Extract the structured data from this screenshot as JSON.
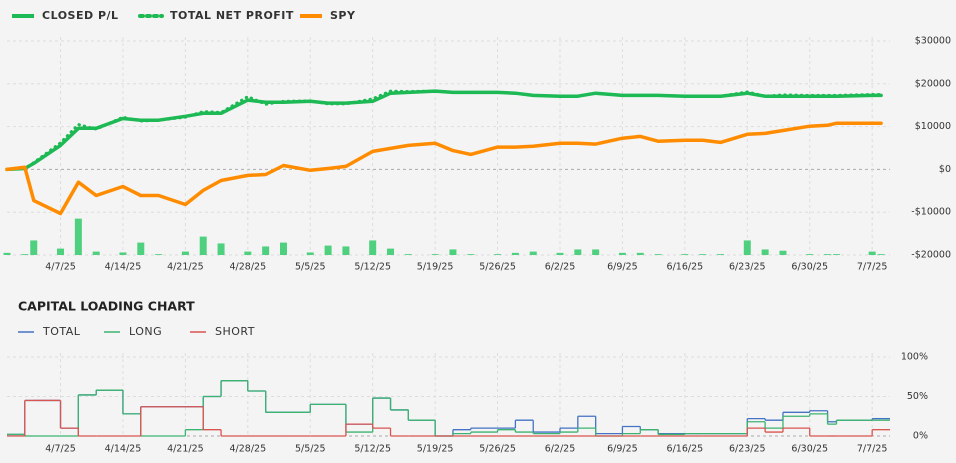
{
  "chart_data": [
    {
      "type": "line",
      "x": [
        "4/1/25",
        "4/3/25",
        "4/4/25",
        "4/7/25",
        "4/9/25",
        "4/11/25",
        "4/14/25",
        "4/16/25",
        "4/18/25",
        "4/21/25",
        "4/23/25",
        "4/25/25",
        "4/28/25",
        "4/30/25",
        "5/2/25",
        "5/5/25",
        "5/7/25",
        "5/9/25",
        "5/12/25",
        "5/14/25",
        "5/16/25",
        "5/19/25",
        "5/21/25",
        "5/23/25",
        "5/26/25",
        "5/28/25",
        "5/30/25",
        "6/2/25",
        "6/4/25",
        "6/6/25",
        "6/9/25",
        "6/11/25",
        "6/13/25",
        "6/16/25",
        "6/18/25",
        "6/20/25",
        "6/23/25",
        "6/25/25",
        "6/27/25",
        "6/30/25",
        "7/2/25",
        "7/3/25",
        "7/7/25",
        "7/8/25"
      ],
      "xlim": [
        "4/1/25",
        "7/9/25"
      ],
      "xticks": [
        "4/7/25",
        "4/14/25",
        "4/21/25",
        "4/28/25",
        "5/5/25",
        "5/12/25",
        "5/19/25",
        "5/26/25",
        "6/2/25",
        "6/9/25",
        "6/16/25",
        "6/23/25",
        "6/30/25",
        "7/7/25"
      ],
      "ylim": [
        -20000,
        30000
      ],
      "yticks": [
        {
          "value": 30000,
          "label": "$30000"
        },
        {
          "value": 20000,
          "label": "$20000"
        },
        {
          "value": 10000,
          "label": "$10000"
        },
        {
          "value": 0,
          "label": "$0"
        },
        {
          "value": -10000,
          "label": "-$10000"
        },
        {
          "value": -20000,
          "label": "-$20000"
        }
      ],
      "grid": true,
      "legend": "top-left",
      "series": [
        {
          "type": "bar",
          "color": "#4fd07f",
          "values": [
            -19500,
            -19800,
            -16600,
            -18500,
            -11500,
            -19200,
            -19400,
            -17100,
            -19800,
            -19200,
            -15700,
            -17300,
            -19200,
            -18000,
            -17100,
            -19400,
            -17800,
            -18000,
            -16600,
            -18500,
            -19800,
            -19800,
            -18700,
            -19800,
            -19800,
            -19500,
            -19200,
            -19500,
            -18700,
            -18700,
            -19500,
            -19500,
            -19800,
            -19800,
            -19800,
            -19800,
            -16600,
            -18700,
            -19000,
            -19800,
            -19800,
            -19800,
            -19200,
            -19800
          ]
        },
        {
          "name": "TOTAL NET PROFIT",
          "style": "dotted",
          "color": "#1db954",
          "values": [
            0,
            200,
            1600,
            6200,
            10500,
            9400,
            12200,
            11300,
            11500,
            12200,
            13500,
            13300,
            17000,
            15200,
            15900,
            16000,
            15300,
            15300,
            16500,
            18300,
            18200,
            18300,
            18000,
            18000,
            18000,
            17800,
            17300,
            17100,
            17100,
            17800,
            17300,
            17300,
            17300,
            17100,
            17100,
            17100,
            18100,
            17100,
            17400,
            17300,
            17300,
            17300,
            17500,
            17500
          ]
        },
        {
          "name": "CLOSED P/L",
          "style": "solid",
          "color": "#1db954",
          "values": [
            0,
            200,
            1400,
            5600,
            9600,
            9600,
            11900,
            11500,
            11500,
            12400,
            13100,
            13100,
            16200,
            15700,
            15700,
            15900,
            15500,
            15500,
            15900,
            17800,
            18000,
            18300,
            18000,
            18000,
            18000,
            17800,
            17300,
            17100,
            17100,
            17800,
            17300,
            17300,
            17300,
            17100,
            17100,
            17100,
            17800,
            17100,
            17100,
            17100,
            17100,
            17100,
            17300,
            17300
          ]
        },
        {
          "name": "SPY",
          "style": "solid",
          "color": "#ff8c00",
          "values": [
            0,
            500,
            -7300,
            -10300,
            -3000,
            -6100,
            -4000,
            -6100,
            -6100,
            -8200,
            -4900,
            -2600,
            -1400,
            -1200,
            900,
            -200,
            200,
            700,
            4200,
            4900,
            5600,
            6100,
            4400,
            3500,
            5200,
            5200,
            5400,
            6100,
            6100,
            5900,
            7300,
            7700,
            6600,
            6800,
            6800,
            6300,
            8200,
            8400,
            9100,
            10100,
            10300,
            10800,
            10800,
            10800
          ]
        }
      ],
      "legend_order": [
        2,
        1,
        3
      ]
    },
    {
      "type": "step",
      "title": "CAPITAL LOADING CHART",
      "x": [
        "4/1/25",
        "4/3/25",
        "4/4/25",
        "4/7/25",
        "4/9/25",
        "4/11/25",
        "4/14/25",
        "4/16/25",
        "4/18/25",
        "4/21/25",
        "4/23/25",
        "4/25/25",
        "4/28/25",
        "4/30/25",
        "5/2/25",
        "5/5/25",
        "5/7/25",
        "5/9/25",
        "5/12/25",
        "5/14/25",
        "5/16/25",
        "5/19/25",
        "5/21/25",
        "5/23/25",
        "5/26/25",
        "5/28/25",
        "5/30/25",
        "6/2/25",
        "6/4/25",
        "6/6/25",
        "6/9/25",
        "6/11/25",
        "6/13/25",
        "6/16/25",
        "6/18/25",
        "6/20/25",
        "6/23/25",
        "6/25/25",
        "6/27/25",
        "6/30/25",
        "7/2/25",
        "7/3/25",
        "7/7/25",
        "7/8/25"
      ],
      "xlim": [
        "4/1/25",
        "7/9/25"
      ],
      "xticks": [
        "4/7/25",
        "4/14/25",
        "4/21/25",
        "4/28/25",
        "5/5/25",
        "5/12/25",
        "5/19/25",
        "5/26/25",
        "6/2/25",
        "6/9/25",
        "6/16/25",
        "6/23/25",
        "6/30/25",
        "7/7/25"
      ],
      "ylim": [
        0,
        100
      ],
      "yticks": [
        {
          "value": 100,
          "label": "100%"
        },
        {
          "value": 50,
          "label": "50%"
        },
        {
          "value": 0,
          "label": "0%"
        }
      ],
      "grid": true,
      "legend": "top-left",
      "series": [
        {
          "name": "TOTAL",
          "color": "#4472c4",
          "values": [
            2,
            45,
            45,
            10,
            52,
            58,
            28,
            37,
            37,
            37,
            50,
            70,
            57,
            30,
            30,
            40,
            40,
            15,
            48,
            33,
            20,
            0,
            8,
            10,
            10,
            20,
            5,
            10,
            25,
            3,
            12,
            8,
            3,
            3,
            3,
            3,
            22,
            20,
            30,
            32,
            18,
            20,
            22,
            22
          ]
        },
        {
          "name": "LONG",
          "color": "#3cb371",
          "values": [
            2,
            0,
            0,
            0,
            52,
            58,
            28,
            0,
            0,
            8,
            50,
            70,
            57,
            30,
            30,
            40,
            40,
            5,
            48,
            33,
            20,
            0,
            3,
            5,
            8,
            5,
            3,
            5,
            10,
            0,
            3,
            8,
            2,
            3,
            3,
            3,
            18,
            10,
            25,
            28,
            15,
            20,
            20,
            20
          ]
        },
        {
          "name": "SHORT",
          "color": "#d9534f",
          "values": [
            0,
            45,
            45,
            10,
            0,
            0,
            0,
            37,
            37,
            37,
            8,
            0,
            0,
            0,
            0,
            0,
            0,
            15,
            10,
            0,
            0,
            0,
            0,
            0,
            0,
            0,
            0,
            0,
            0,
            0,
            0,
            0,
            0,
            0,
            0,
            0,
            10,
            5,
            10,
            0,
            0,
            0,
            8,
            8
          ]
        }
      ]
    }
  ]
}
